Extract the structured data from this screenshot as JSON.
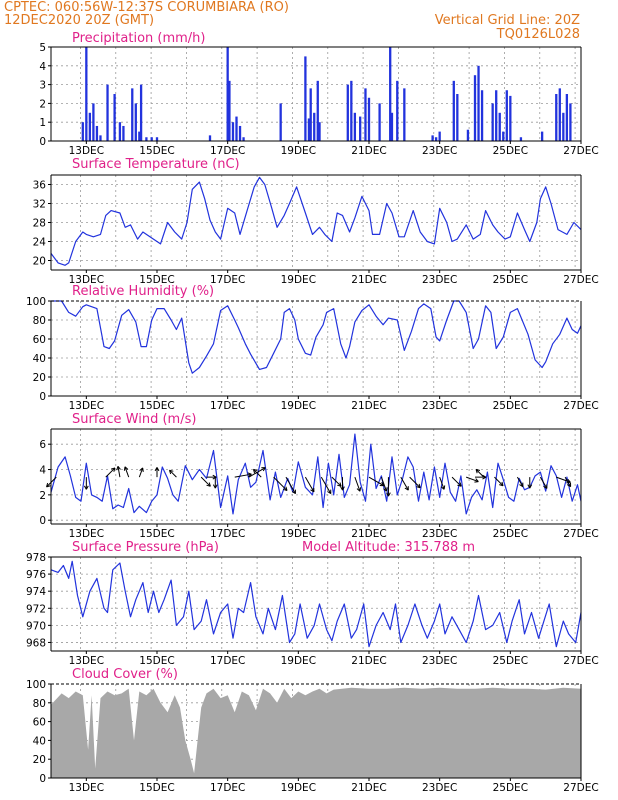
{
  "header": {
    "line1_left": "CPTEC:  060:56W-12:37S  CORUMBIARA (RO)",
    "line2_left": "12DEC2020 20Z (GMT)",
    "line1_right": "Vertical Grid Line: 20Z",
    "line2_right": "TQ0126L028"
  },
  "colors": {
    "header": "#e07820",
    "titles": "#e0218a",
    "series": "#2233dd",
    "cloud": "#a8a8a8"
  },
  "x_tick_labels": [
    "13DEC",
    "15DEC",
    "17DEC",
    "19DEC",
    "21DEC",
    "23DEC",
    "25DEC",
    "27DEC"
  ],
  "chart_data": [
    {
      "type": "bar",
      "title": "Precipitation (mm/h)",
      "ylim": [
        0,
        5
      ],
      "yticks": [
        0,
        1,
        2,
        3,
        4,
        5
      ],
      "x": [
        12.9,
        13.0,
        13.1,
        13.2,
        13.3,
        13.4,
        13.6,
        13.8,
        13.95,
        14.05,
        14.3,
        14.4,
        14.5,
        14.55,
        14.7,
        14.85,
        15.0,
        16.5,
        17.0,
        17.05,
        17.15,
        17.25,
        17.35,
        17.45,
        18.5,
        19.2,
        19.3,
        19.35,
        19.45,
        19.55,
        19.6,
        20.4,
        20.5,
        20.6,
        20.75,
        20.9,
        21.0,
        21.3,
        21.6,
        21.65,
        21.8,
        22.0,
        22.8,
        22.9,
        23.0,
        23.4,
        23.5,
        23.8,
        24.0,
        24.1,
        24.2,
        24.5,
        24.6,
        24.7,
        24.8,
        24.9,
        25.0,
        25.3,
        25.9,
        26.3,
        26.4,
        26.5,
        26.6,
        26.7
      ],
      "values": [
        1.0,
        5.0,
        1.5,
        2.0,
        0.8,
        0.3,
        3.0,
        2.5,
        1.0,
        0.8,
        2.8,
        2.0,
        0.5,
        3.0,
        0.2,
        0.2,
        0.2,
        0.3,
        5.0,
        3.2,
        1.0,
        1.3,
        0.8,
        0.2,
        2.0,
        4.5,
        1.2,
        2.8,
        1.5,
        3.2,
        1.0,
        3.0,
        3.2,
        1.5,
        1.3,
        2.8,
        2.3,
        2.0,
        5.0,
        1.5,
        3.2,
        2.8,
        0.3,
        0.2,
        0.5,
        3.2,
        2.5,
        0.6,
        3.5,
        4.0,
        2.7,
        2.0,
        2.7,
        1.5,
        0.5,
        2.7,
        2.4,
        0.2,
        0.5,
        2.5,
        2.8,
        1.5,
        2.5,
        2.0
      ]
    },
    {
      "type": "line",
      "title": "Surface Temperature (nC)",
      "ylim": [
        18,
        38
      ],
      "yticks": [
        20,
        24,
        28,
        32,
        36
      ],
      "x": [
        12.0,
        12.2,
        12.4,
        12.5,
        12.7,
        12.9,
        13.0,
        13.2,
        13.4,
        13.55,
        13.7,
        13.95,
        14.1,
        14.25,
        14.45,
        14.6,
        14.8,
        15.0,
        15.1,
        15.3,
        15.5,
        15.7,
        15.85,
        16.0,
        16.2,
        16.35,
        16.5,
        16.65,
        16.8,
        17.0,
        17.2,
        17.35,
        17.55,
        17.75,
        17.9,
        18.05,
        18.25,
        18.4,
        18.6,
        18.75,
        18.95,
        19.2,
        19.4,
        19.6,
        19.75,
        19.95,
        20.1,
        20.25,
        20.45,
        20.6,
        20.8,
        21.0,
        21.1,
        21.3,
        21.5,
        21.65,
        21.85,
        22.0,
        22.25,
        22.45,
        22.65,
        22.85,
        23.0,
        23.2,
        23.35,
        23.5,
        23.75,
        23.95,
        24.15,
        24.3,
        24.5,
        24.65,
        24.85,
        25.0,
        25.2,
        25.4,
        25.55,
        25.75,
        25.85,
        26.0,
        26.15,
        26.35,
        26.6,
        26.8,
        27.0
      ],
      "y": [
        21.5,
        19.5,
        19.0,
        19.5,
        24.0,
        26.0,
        25.5,
        25.0,
        25.5,
        29.5,
        30.5,
        30.0,
        27.0,
        27.5,
        24.5,
        26.0,
        25.0,
        24.0,
        23.5,
        28.0,
        26.0,
        24.5,
        28.0,
        35.0,
        36.5,
        33.0,
        28.5,
        26.0,
        24.5,
        31.0,
        30.0,
        25.5,
        30.5,
        35.5,
        37.5,
        36.0,
        31.0,
        27.0,
        29.5,
        32.0,
        35.5,
        30.0,
        25.5,
        27.0,
        25.5,
        24.0,
        30.0,
        29.5,
        26.0,
        29.0,
        33.5,
        30.5,
        25.5,
        25.5,
        32.0,
        30.0,
        25.0,
        25.0,
        30.5,
        26.0,
        24.0,
        23.5,
        31.0,
        28.0,
        24.0,
        24.5,
        27.5,
        24.5,
        25.5,
        30.5,
        27.5,
        26.0,
        24.5,
        25.0,
        30.0,
        26.5,
        24.0,
        28.0,
        33.0,
        35.5,
        32.0,
        26.5,
        25.5,
        28.0,
        26.5
      ]
    },
    {
      "type": "line",
      "title": "Relative Humidity (%)",
      "ylim": [
        0,
        100
      ],
      "yticks": [
        0,
        20,
        40,
        60,
        80,
        100
      ],
      "x": [
        12.0,
        12.3,
        12.5,
        12.7,
        12.9,
        13.0,
        13.3,
        13.5,
        13.65,
        13.8,
        14.0,
        14.2,
        14.4,
        14.55,
        14.7,
        14.85,
        15.0,
        15.2,
        15.4,
        15.55,
        15.7,
        15.9,
        16.0,
        16.2,
        16.4,
        16.6,
        16.8,
        17.0,
        17.2,
        17.3,
        17.5,
        17.65,
        17.9,
        18.1,
        18.3,
        18.5,
        18.6,
        18.75,
        18.9,
        19.0,
        19.2,
        19.35,
        19.5,
        19.7,
        19.8,
        20.0,
        20.2,
        20.35,
        20.45,
        20.6,
        20.8,
        21.0,
        21.2,
        21.4,
        21.55,
        21.8,
        22.0,
        22.2,
        22.4,
        22.55,
        22.75,
        22.9,
        23.0,
        23.2,
        23.4,
        23.55,
        23.75,
        23.95,
        24.1,
        24.3,
        24.45,
        24.6,
        24.8,
        25.0,
        25.2,
        25.5,
        25.7,
        25.9,
        26.0,
        26.2,
        26.4,
        26.6,
        26.75,
        26.9,
        27.0
      ],
      "y": [
        100,
        100,
        88,
        84,
        94,
        96,
        92,
        52,
        50,
        58,
        85,
        91,
        78,
        52,
        52,
        80,
        92,
        92,
        80,
        70,
        82,
        35,
        24,
        30,
        42,
        55,
        90,
        95,
        80,
        72,
        55,
        44,
        28,
        30,
        45,
        60,
        88,
        92,
        80,
        60,
        45,
        43,
        62,
        75,
        88,
        92,
        55,
        40,
        52,
        78,
        90,
        96,
        84,
        75,
        82,
        80,
        48,
        68,
        92,
        97,
        92,
        62,
        58,
        80,
        100,
        100,
        88,
        50,
        60,
        95,
        88,
        50,
        62,
        88,
        92,
        65,
        38,
        30,
        36,
        55,
        65,
        82,
        70,
        66,
        74
      ]
    },
    {
      "type": "line",
      "title": "Surface Wind (m/s)",
      "ylim": [
        -0.3,
        7.2
      ],
      "yticks": [
        0,
        2,
        4,
        6
      ],
      "x": [
        12.0,
        12.2,
        12.4,
        12.55,
        12.7,
        12.85,
        13.0,
        13.15,
        13.3,
        13.45,
        13.6,
        13.75,
        13.9,
        14.05,
        14.2,
        14.35,
        14.5,
        14.7,
        14.85,
        15.0,
        15.15,
        15.3,
        15.45,
        15.6,
        15.8,
        16.0,
        16.2,
        16.4,
        16.6,
        16.8,
        17.0,
        17.15,
        17.3,
        17.5,
        17.65,
        17.8,
        18.0,
        18.2,
        18.35,
        18.5,
        18.7,
        18.85,
        19.0,
        19.2,
        19.4,
        19.55,
        19.7,
        19.85,
        20.0,
        20.15,
        20.3,
        20.45,
        20.6,
        20.75,
        20.9,
        21.05,
        21.2,
        21.35,
        21.5,
        21.65,
        21.8,
        21.95,
        22.1,
        22.25,
        22.4,
        22.55,
        22.7,
        22.85,
        23.0,
        23.15,
        23.3,
        23.45,
        23.6,
        23.75,
        23.9,
        24.05,
        24.2,
        24.35,
        24.5,
        24.65,
        24.8,
        24.95,
        25.1,
        25.25,
        25.4,
        25.55,
        25.7,
        25.85,
        26.0,
        26.15,
        26.3,
        26.45,
        26.6,
        26.75,
        26.9,
        27.0
      ],
      "y": [
        2.2,
        4.2,
        5.0,
        3.5,
        1.8,
        1.5,
        4.5,
        2.0,
        1.8,
        1.5,
        3.5,
        0.9,
        1.2,
        1.0,
        2.5,
        0.6,
        1.1,
        0.6,
        1.5,
        2.0,
        4.2,
        3.3,
        2.0,
        1.5,
        4.3,
        3.2,
        4.0,
        3.3,
        5.5,
        1.0,
        3.5,
        0.5,
        3.2,
        4.5,
        2.6,
        3.0,
        5.5,
        1.6,
        3.8,
        1.8,
        3.3,
        2.2,
        4.6,
        2.6,
        2.0,
        5.0,
        1.0,
        4.5,
        2.0,
        5.2,
        1.8,
        2.8,
        6.8,
        3.0,
        1.5,
        6.0,
        2.5,
        3.5,
        1.5,
        5.0,
        2.0,
        3.3,
        5.0,
        4.2,
        1.5,
        3.8,
        1.6,
        4.2,
        1.8,
        4.5,
        2.2,
        1.5,
        3.5,
        0.5,
        1.8,
        2.4,
        1.6,
        3.8,
        1.0,
        4.5,
        3.2,
        1.8,
        1.5,
        3.3,
        2.4,
        2.6,
        3.5,
        3.8,
        2.3,
        4.3,
        3.5,
        1.8,
        3.4,
        1.5,
        2.8,
        1.5
      ]
    },
    {
      "type": "line",
      "title": "Surface Pressure (hPa)",
      "annotation": "Model Altitude: 315.788 m",
      "ylim": [
        967,
        978
      ],
      "yticks": [
        968,
        970,
        972,
        974,
        976,
        978
      ],
      "x": [
        12.0,
        12.2,
        12.35,
        12.5,
        12.6,
        12.75,
        12.9,
        13.1,
        13.3,
        13.5,
        13.6,
        13.75,
        13.95,
        14.1,
        14.25,
        14.4,
        14.6,
        14.75,
        14.9,
        15.05,
        15.2,
        15.4,
        15.55,
        15.75,
        15.9,
        16.05,
        16.25,
        16.4,
        16.6,
        16.8,
        17.0,
        17.15,
        17.3,
        17.45,
        17.65,
        17.8,
        18.0,
        18.15,
        18.35,
        18.55,
        18.75,
        18.9,
        19.05,
        19.25,
        19.45,
        19.6,
        19.8,
        19.95,
        20.1,
        20.3,
        20.5,
        20.65,
        20.85,
        21.0,
        21.2,
        21.4,
        21.6,
        21.75,
        21.9,
        22.1,
        22.3,
        22.5,
        22.65,
        22.85,
        23.0,
        23.15,
        23.35,
        23.55,
        23.75,
        23.95,
        24.1,
        24.3,
        24.5,
        24.7,
        24.9,
        25.05,
        25.25,
        25.4,
        25.6,
        25.8,
        25.95,
        26.1,
        26.3,
        26.5,
        26.65,
        26.85,
        27.0
      ],
      "y": [
        976.5,
        976.2,
        977.0,
        975.5,
        977.5,
        973.5,
        971.0,
        974.0,
        975.5,
        972.0,
        971.5,
        976.5,
        977.3,
        974.0,
        971.0,
        973.0,
        975.0,
        971.5,
        974.0,
        971.5,
        973.0,
        975.3,
        970.0,
        971.0,
        974.0,
        969.5,
        970.5,
        973.0,
        969.0,
        971.5,
        972.5,
        968.5,
        972.0,
        971.5,
        975.0,
        971.0,
        969.0,
        972.0,
        969.5,
        973.5,
        968.0,
        969.0,
        972.5,
        968.5,
        970.0,
        972.5,
        969.5,
        968.2,
        970.5,
        972.5,
        968.5,
        969.5,
        972.5,
        967.5,
        970.0,
        971.5,
        969.5,
        972.5,
        968.0,
        970.0,
        972.5,
        970.0,
        968.5,
        970.5,
        972.5,
        969.0,
        971.0,
        969.5,
        968.0,
        970.5,
        973.5,
        969.5,
        970.0,
        971.5,
        968.0,
        970.5,
        973.0,
        969.0,
        971.5,
        968.5,
        970.5,
        972.5,
        967.5,
        970.5,
        969.0,
        968.0,
        971.5
      ]
    },
    {
      "type": "area",
      "title": "Cloud Cover (%)",
      "ylim": [
        0,
        100
      ],
      "yticks": [
        0,
        20,
        40,
        60,
        80,
        100
      ],
      "x": [
        12.0,
        12.3,
        12.5,
        12.7,
        12.9,
        13.05,
        13.15,
        13.25,
        13.4,
        13.6,
        13.8,
        14.0,
        14.2,
        14.35,
        14.5,
        14.7,
        14.9,
        15.1,
        15.3,
        15.5,
        15.65,
        15.8,
        15.95,
        16.05,
        16.15,
        16.25,
        16.4,
        16.6,
        16.8,
        17.0,
        17.2,
        17.4,
        17.6,
        17.8,
        18.0,
        18.2,
        18.4,
        18.6,
        18.8,
        19.0,
        19.2,
        19.4,
        19.6,
        19.8,
        20.0,
        20.5,
        21.0,
        21.5,
        22.0,
        22.5,
        23.0,
        23.5,
        24.0,
        24.5,
        25.0,
        25.5,
        26.0,
        26.5,
        27.0
      ],
      "y": [
        78,
        90,
        85,
        92,
        88,
        30,
        88,
        10,
        85,
        92,
        88,
        90,
        95,
        40,
        92,
        88,
        95,
        80,
        70,
        88,
        75,
        40,
        20,
        5,
        40,
        75,
        90,
        95,
        85,
        88,
        70,
        92,
        88,
        72,
        95,
        90,
        80,
        95,
        85,
        92,
        88,
        92,
        95,
        90,
        94,
        96,
        95,
        95,
        96,
        95,
        96,
        95,
        95,
        96,
        95,
        95,
        94,
        96,
        95
      ]
    }
  ],
  "wind_arrows": [
    {
      "x": 12.15,
      "dir": 225,
      "speed": 2.2
    },
    {
      "x": 13.0,
      "dir": 180,
      "speed": 1.8
    },
    {
      "x": 13.55,
      "dir": 45,
      "speed": 2.0
    },
    {
      "x": 13.95,
      "dir": 350,
      "speed": 1.5
    },
    {
      "x": 14.2,
      "dir": 340,
      "speed": 1.5
    },
    {
      "x": 14.5,
      "dir": 20,
      "speed": 1.2
    },
    {
      "x": 15.0,
      "dir": 0,
      "speed": 1.2
    },
    {
      "x": 15.55,
      "dir": 315,
      "speed": 1.2
    },
    {
      "x": 16.25,
      "dir": 135,
      "speed": 2.0
    },
    {
      "x": 16.4,
      "dir": 90,
      "speed": 1.2
    },
    {
      "x": 16.65,
      "dir": 180,
      "speed": 1.5
    },
    {
      "x": 17.2,
      "dir": 80,
      "speed": 3.0
    },
    {
      "x": 17.6,
      "dir": 60,
      "speed": 3.5
    },
    {
      "x": 17.95,
      "dir": 315,
      "speed": 1.5
    },
    {
      "x": 18.3,
      "dir": 135,
      "speed": 3.5
    },
    {
      "x": 18.65,
      "dir": 150,
      "speed": 3.5
    },
    {
      "x": 19.2,
      "dir": 150,
      "speed": 3.0
    },
    {
      "x": 19.65,
      "dir": 150,
      "speed": 3.5
    },
    {
      "x": 19.95,
      "dir": 135,
      "speed": 2.0
    },
    {
      "x": 20.25,
      "dir": 180,
      "speed": 2.0
    },
    {
      "x": 20.6,
      "dir": 160,
      "speed": 2.5
    },
    {
      "x": 21.0,
      "dir": 120,
      "speed": 3.0
    },
    {
      "x": 21.35,
      "dir": 160,
      "speed": 2.5
    },
    {
      "x": 21.55,
      "dir": 180,
      "speed": 3.5
    },
    {
      "x": 21.9,
      "dir": 150,
      "speed": 2.5
    },
    {
      "x": 22.15,
      "dir": 135,
      "speed": 2.5
    },
    {
      "x": 23.0,
      "dir": 160,
      "speed": 2.0
    },
    {
      "x": 23.35,
      "dir": 135,
      "speed": 2.0
    },
    {
      "x": 23.75,
      "dir": 110,
      "speed": 2.0
    },
    {
      "x": 24.0,
      "dir": 90,
      "speed": 1.5
    },
    {
      "x": 24.25,
      "dir": 315,
      "speed": 1.5
    },
    {
      "x": 24.55,
      "dir": 135,
      "speed": 1.8
    },
    {
      "x": 25.2,
      "dir": 150,
      "speed": 1.5
    },
    {
      "x": 25.55,
      "dir": 180,
      "speed": 1.5
    },
    {
      "x": 25.85,
      "dir": 150,
      "speed": 2.0
    },
    {
      "x": 26.3,
      "dir": 110,
      "speed": 2.5
    },
    {
      "x": 26.55,
      "dir": 150,
      "speed": 1.5
    }
  ]
}
